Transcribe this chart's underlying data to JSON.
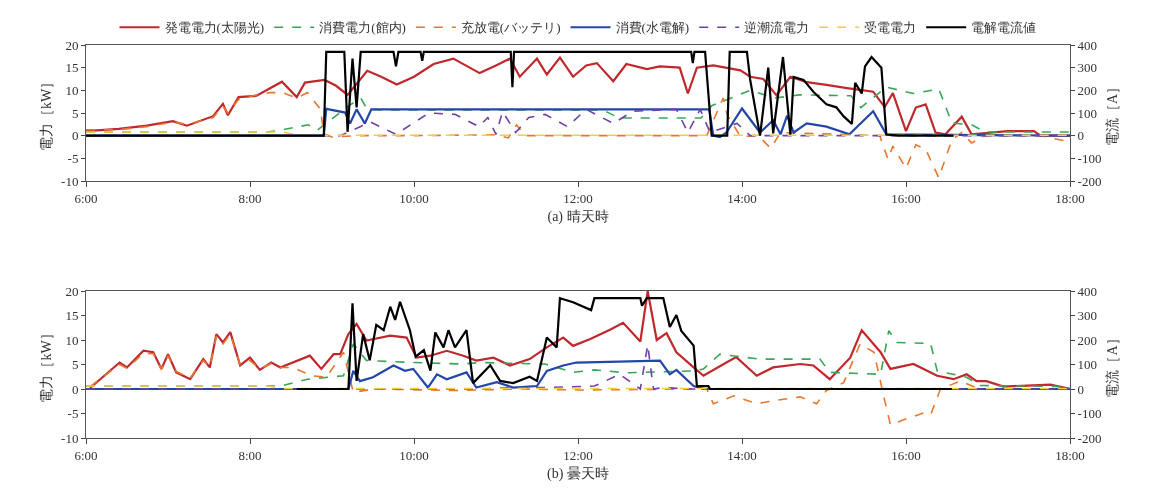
{
  "chart_data": [
    {
      "type": "line",
      "xlabel": "(a) 晴天時",
      "ylabel": "電力［kW］",
      "y2label": "電流［A］",
      "legend": "top",
      "grid": false,
      "marker": "none",
      "xlim": [
        6,
        18
      ],
      "xticks": [
        {
          "value": 6,
          "label": "6:00"
        },
        {
          "value": 8,
          "label": "8:00"
        },
        {
          "value": 10,
          "label": "10:00"
        },
        {
          "value": 12,
          "label": "12:00"
        },
        {
          "value": 14,
          "label": "14:00"
        },
        {
          "value": 16,
          "label": "16:00"
        },
        {
          "value": 18,
          "label": "18:00"
        }
      ],
      "ylim": [
        -10,
        20
      ],
      "yticks": [
        -10,
        -5,
        0,
        5,
        10,
        15,
        20
      ],
      "y2lim": [
        -200,
        400
      ],
      "y2ticks": [
        -200,
        -100,
        0,
        100,
        200,
        300,
        400
      ],
      "series": [
        {
          "name": "発電電力(太陽光)",
          "color": "#c0282d",
          "line_style": "solid",
          "x": [
            6,
            6.4,
            6.74,
            7.06,
            7.23,
            7.55,
            7.67,
            7.73,
            7.86,
            8.08,
            8.25,
            8.39,
            8.57,
            8.67,
            8.91,
            9.05,
            9.19,
            9.43,
            9.6,
            9.79,
            10,
            10.24,
            10.48,
            10.8,
            11,
            11.17,
            11.29,
            11.5,
            11.62,
            11.78,
            11.94,
            12.1,
            12.23,
            12.43,
            12.59,
            12.84,
            13,
            13.24,
            13.34,
            13.45,
            13.65,
            13.98,
            14.1,
            14.26,
            14.42,
            14.59,
            14.79,
            15.03,
            15.28,
            15.6,
            15.74,
            15.84,
            16,
            16.12,
            16.24,
            16.36,
            16.48,
            16.68,
            16.8,
            17.24,
            17.56,
            17.64,
            18
          ],
          "values": [
            1,
            1.5,
            2.2,
            3.2,
            2.2,
            4.3,
            7,
            4.5,
            8.5,
            8.8,
            10.5,
            11.9,
            8.5,
            11.7,
            12.3,
            11,
            9,
            14.3,
            13,
            11.3,
            13,
            15.8,
            17,
            13.8,
            15.5,
            17,
            13,
            17,
            13.5,
            17.2,
            13,
            15.5,
            16,
            12,
            15.8,
            14.7,
            15.3,
            15,
            9.3,
            15,
            15.5,
            14.4,
            13,
            12.5,
            8.9,
            13,
            11.8,
            11.2,
            10.5,
            9.7,
            6.3,
            9.4,
            1,
            6.2,
            6.9,
            0.7,
            0.3,
            4.2,
            0.3,
            1,
            1,
            0,
            0
          ]
        },
        {
          "name": "消費電力(館内)",
          "color": "#3aa655",
          "line_style": "dashed",
          "x": [
            6,
            8.2,
            8.37,
            8.71,
            8.82,
            9.23,
            9.35,
            9.43,
            9.6,
            12.3,
            12.5,
            13.5,
            13.63,
            14.1,
            14.4,
            14.7,
            15.33,
            15.45,
            15.76,
            16.09,
            16.4,
            16.56,
            16.8,
            16.97,
            18
          ],
          "values": [
            0.8,
            0.8,
            1.2,
            2.4,
            1.2,
            6.9,
            8.3,
            5.8,
            5.7,
            5.7,
            3.9,
            3.9,
            6.6,
            10,
            8.3,
            9,
            8.8,
            6.2,
            10.7,
            9.3,
            10.3,
            2.8,
            2.4,
            0.8,
            0.8
          ]
        },
        {
          "name": "充放電(バッテリ)",
          "color": "#e8772e",
          "line_style": "dashed",
          "x": [
            6,
            6.4,
            6.74,
            7.06,
            7.23,
            7.55,
            7.67,
            7.73,
            7.86,
            8.08,
            8.25,
            8.4,
            8.57,
            8.7,
            8.86,
            8.9,
            9,
            9.3,
            10,
            11,
            11.15,
            11.25,
            11.35,
            12,
            13.57,
            13.77,
            13.82,
            13.98,
            14.2,
            14.35,
            14.47,
            15.68,
            15.78,
            15.84,
            16,
            16.12,
            16.24,
            16.4,
            16.56,
            16.68,
            16.8,
            16.97,
            17.64,
            17.9,
            18
          ],
          "values": [
            1.3,
            1.3,
            2,
            3,
            2.5,
            4,
            6.5,
            5,
            8,
            9,
            9.5,
            9.5,
            8.3,
            9.5,
            5.8,
            0.4,
            -0.3,
            0,
            0,
            0.2,
            -0.5,
            2.4,
            0,
            0,
            0,
            8.3,
            4.6,
            -0.2,
            0,
            -2.8,
            0.7,
            0,
            -5.2,
            -2.3,
            -7.2,
            -2,
            -3,
            -9.3,
            -0.9,
            0.7,
            -1.6,
            0,
            0,
            -1,
            -1
          ]
        },
        {
          "name": "消費(水電解)",
          "color": "#2346a8",
          "line_style": "solid",
          "x": [
            6,
            8.9,
            8.93,
            9.16,
            9.22,
            9.3,
            9.4,
            9.48,
            13.6,
            13.65,
            13.73,
            13.81,
            14,
            14.22,
            14.38,
            14.47,
            14.55,
            14.63,
            14.79,
            15.03,
            15.31,
            15.6,
            15.76,
            18
          ],
          "values": [
            0,
            0,
            5.9,
            5.1,
            2.7,
            5.8,
            2.7,
            5.8,
            5.8,
            0,
            -0.3,
            0.7,
            6,
            0.7,
            3.4,
            0.3,
            4.4,
            0.7,
            2.7,
            2,
            0.3,
            5.4,
            0.3,
            0
          ]
        },
        {
          "name": "逆潮流電力",
          "color": "#7040a8",
          "line_style": "dashed",
          "x": [
            6,
            9.1,
            9.47,
            9.78,
            10.18,
            10.5,
            10.79,
            10.9,
            11,
            11.08,
            11.24,
            11.4,
            11.6,
            11.87,
            12.1,
            12.43,
            12.67,
            13.2,
            13.34,
            13.49,
            13.61,
            13.94,
            14.1,
            18
          ],
          "values": [
            0,
            0,
            3,
            0.3,
            5,
            4.7,
            2,
            4,
            0.3,
            5.3,
            0.7,
            4,
            4.7,
            2,
            5.8,
            2.7,
            5.4,
            5.8,
            0.7,
            5.8,
            0.7,
            2.7,
            0,
            0
          ]
        },
        {
          "name": "受電電力",
          "color": "#f2d03a",
          "line_style": "dashed",
          "x": [
            6,
            8.4,
            8.6,
            18
          ],
          "values": [
            0.8,
            0.8,
            0.1,
            0.1
          ]
        },
        {
          "name": "電解電流値",
          "color": "#000000",
          "line_style": "solid",
          "axis": "y2",
          "x": [
            6,
            8.9,
            8.93,
            9.15,
            9.19,
            9.25,
            9.3,
            9.35,
            9.75,
            9.78,
            9.81,
            10.08,
            10.1,
            10.12,
            11.18,
            11.2,
            11.22,
            13.38,
            13.4,
            13.42,
            13.55,
            13.63,
            13.82,
            13.85,
            14.06,
            14.1,
            14.22,
            14.32,
            14.38,
            14.5,
            14.59,
            14.63,
            14.75,
            14.87,
            15.03,
            15.15,
            15.24,
            15.34,
            15.38,
            15.46,
            15.5,
            15.58,
            15.7,
            15.76,
            15.92,
            16.58
          ],
          "values": [
            0,
            0,
            370,
            370,
            17,
            340,
            125,
            370,
            370,
            306,
            370,
            370,
            330,
            370,
            370,
            214,
            370,
            370,
            320,
            370,
            370,
            0,
            0,
            370,
            370,
            246,
            0,
            300,
            10,
            347,
            5,
            259,
            246,
            194,
            138,
            125,
            85,
            52,
            233,
            186,
            306,
            347,
            300,
            5,
            0,
            0
          ]
        }
      ]
    },
    {
      "type": "line",
      "xlabel": "(b) 曇天時",
      "ylabel": "電力［kW］",
      "y2label": "電流［A］",
      "legend": false,
      "grid": false,
      "marker": "none",
      "xlim": [
        6,
        18
      ],
      "xticks": [
        {
          "value": 6,
          "label": "6:00"
        },
        {
          "value": 8,
          "label": "8:00"
        },
        {
          "value": 10,
          "label": "10:00"
        },
        {
          "value": 12,
          "label": "12:00"
        },
        {
          "value": 14,
          "label": "14:00"
        },
        {
          "value": 16,
          "label": "16:00"
        },
        {
          "value": 18,
          "label": "18:00"
        }
      ],
      "ylim": [
        -10,
        20
      ],
      "yticks": [
        -10,
        -5,
        0,
        5,
        10,
        15,
        20
      ],
      "y2lim": [
        -200,
        400
      ],
      "y2ticks": [
        -200,
        -100,
        0,
        100,
        200,
        300,
        400
      ],
      "series": [
        {
          "color": "#c0282d",
          "line_style": "solid",
          "x": [
            6.05,
            6.41,
            6.5,
            6.7,
            6.82,
            6.92,
            7,
            7.1,
            7.27,
            7.43,
            7.51,
            7.59,
            7.67,
            7.76,
            7.88,
            8,
            8.12,
            8.26,
            8.37,
            8.73,
            8.87,
            9.02,
            9.1,
            9.2,
            9.3,
            9.42,
            9.71,
            9.91,
            10.03,
            10.2,
            10.4,
            10.6,
            10.76,
            10.97,
            11.17,
            11.41,
            11.62,
            11.82,
            11.94,
            12.15,
            12.39,
            12.55,
            12.76,
            12.85,
            12.96,
            13.08,
            13.2,
            13.41,
            13.53,
            13.81,
            13.93,
            14.18,
            14.38,
            14.71,
            14.87,
            15.07,
            15.32,
            15.46,
            15.69,
            15.81,
            16.09,
            16.38,
            16.58,
            16.74,
            16.86,
            16.98,
            17.19,
            17.76,
            18
          ],
          "values": [
            0.2,
            5.4,
            4.4,
            7.8,
            7.5,
            4.1,
            7.1,
            3.4,
            2,
            6.1,
            4.4,
            11.2,
            9.5,
            11.6,
            4.8,
            6.4,
            3.9,
            5.4,
            4.4,
            6.8,
            4.1,
            7.1,
            7.1,
            11.2,
            13.3,
            9.9,
            10.9,
            10.5,
            6.4,
            6.8,
            7.8,
            6.8,
            5.8,
            6.4,
            4.8,
            6.1,
            8.5,
            10.5,
            8.8,
            10.2,
            12.1,
            13.5,
            9.7,
            20,
            10,
            11.4,
            7.5,
            4.4,
            2.7,
            5.4,
            6.5,
            2.7,
            4.4,
            5.1,
            4.8,
            2,
            6.4,
            12,
            7.5,
            4.1,
            5.1,
            2.7,
            2,
            3,
            1.6,
            1.6,
            0.5,
            0.9,
            0
          ]
        },
        {
          "color": "#3aa655",
          "line_style": "dashed",
          "x": [
            6,
            8.2,
            8.37,
            8.7,
            9.14,
            9.26,
            9.42,
            10,
            10.6,
            10.8,
            11.6,
            11.94,
            12.2,
            12.59,
            13.41,
            13.53,
            13.73,
            14.22,
            14.95,
            15.07,
            15.69,
            15.79,
            15.89,
            16.3,
            16.38,
            16.74,
            16.9,
            18
          ],
          "values": [
            0.6,
            0.6,
            0.6,
            2,
            2.7,
            9.2,
            5.8,
            5.4,
            5.1,
            5.4,
            5.1,
            3.4,
            3.9,
            3.3,
            3.7,
            4.1,
            7.1,
            6.1,
            6.1,
            3.4,
            3,
            11.9,
            9.5,
            9.3,
            3.7,
            2.4,
            0.7,
            0.5
          ]
        },
        {
          "color": "#e8772e",
          "line_style": "dashed",
          "x": [
            6.05,
            6.41,
            6.5,
            6.7,
            6.82,
            6.92,
            7,
            7.1,
            7.27,
            7.43,
            7.51,
            7.59,
            7.67,
            7.76,
            7.88,
            8,
            8.12,
            8.26,
            8.37,
            8.52,
            8.76,
            8.93,
            9.14,
            9.26,
            9.5,
            10.5,
            11.3,
            12,
            13.57,
            13.65,
            13.9,
            14.18,
            14.38,
            14.71,
            14.91,
            15.03,
            15.24,
            15.44,
            15.61,
            15.73,
            15.81,
            15.97,
            16.21,
            16.3,
            16.42,
            16.66,
            16.9,
            18
          ],
          "values": [
            0.5,
            5,
            4.2,
            7.3,
            7.2,
            4,
            6.8,
            3.6,
            2.2,
            5.8,
            4.5,
            10.8,
            9.2,
            11.2,
            5,
            5.8,
            4.1,
            5.2,
            4.4,
            4.4,
            2.7,
            2.4,
            7.5,
            -0.7,
            0,
            -0.3,
            0,
            -0.2,
            0,
            -3,
            -1.4,
            -3,
            -2.4,
            -1.6,
            -3,
            -0.3,
            1.3,
            9.2,
            7.5,
            -1.6,
            -7.3,
            -6.3,
            -4.9,
            -5.3,
            0,
            1.6,
            0,
            0
          ]
        },
        {
          "color": "#2346a8",
          "line_style": "solid",
          "x": [
            6,
            9.2,
            9.26,
            9.34,
            9.5,
            9.75,
            9.89,
            9.99,
            10.17,
            10.28,
            10.4,
            10.64,
            10.76,
            11.01,
            11.21,
            11.5,
            11.62,
            11.82,
            11.98,
            12.5,
            13,
            13.12,
            13.2,
            13.41,
            13.53,
            18
          ],
          "values": [
            0,
            0,
            3.7,
            1.6,
            2.4,
            4.8,
            3.7,
            4.1,
            0.3,
            3,
            2,
            3.4,
            0.3,
            1.4,
            0.3,
            0.6,
            3.7,
            4.8,
            5.4,
            5.6,
            5.8,
            3,
            3.9,
            0.6,
            0,
            0
          ]
        },
        {
          "color": "#7040a8",
          "line_style": "dashed",
          "x": [
            6,
            10.8,
            11.2,
            11.6,
            12.2,
            12.51,
            12.76,
            12.85,
            12.92,
            13.04,
            13.33,
            18
          ],
          "values": [
            0,
            0,
            0.3,
            0.3,
            0.6,
            3,
            0,
            9,
            0,
            0.3,
            0,
            0
          ]
        },
        {
          "color": "#f2d03a",
          "line_style": "dashed",
          "x": [
            6,
            8.2,
            8.4,
            18
          ],
          "values": [
            0.6,
            0.6,
            0.1,
            0.1
          ]
        },
        {
          "color": "#000000",
          "line_style": "solid",
          "axis": "y2",
          "x": [
            8.57,
            9.2,
            9.25,
            9.3,
            9.38,
            9.46,
            9.54,
            9.63,
            9.71,
            9.77,
            9.83,
            9.95,
            10.02,
            10.12,
            10.2,
            10.26,
            10.36,
            10.42,
            10.5,
            10.64,
            10.72,
            10.93,
            11.05,
            11.21,
            11.41,
            11.5,
            11.62,
            11.74,
            11.78,
            11.94,
            12.16,
            12.2,
            12.76,
            12.78,
            12.84,
            13.04,
            13.12,
            13.2,
            13.26,
            13.41,
            13.45,
            13.59,
            13.61,
            16.56
          ],
          "values": [
            0,
            0,
            350,
            33,
            224,
            117,
            262,
            240,
            336,
            282,
            356,
            240,
            132,
            159,
            75,
            231,
            170,
            240,
            170,
            240,
            24,
            97,
            33,
            24,
            50,
            33,
            210,
            170,
            371,
            354,
            322,
            371,
            371,
            340,
            371,
            371,
            253,
            302,
            237,
            177,
            12,
            12,
            0,
            0
          ]
        }
      ]
    }
  ]
}
